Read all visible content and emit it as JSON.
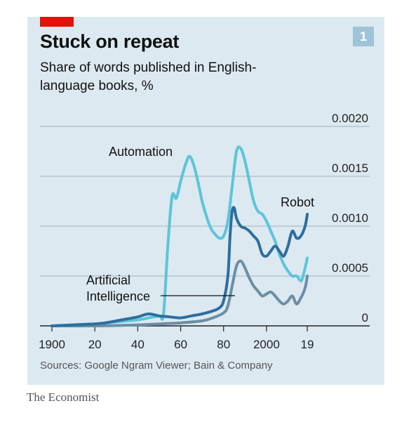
{
  "accent_color": "#e3120b",
  "header": {
    "title": "Stuck on repeat",
    "subtitle": "Share of words published in English-language books, %",
    "chart_number": "1"
  },
  "footer": {
    "source": "Sources: Google Ngram Viewer; Bain & Company",
    "brand": "The Economist"
  },
  "chart_data": {
    "type": "line",
    "title": "Stuck on repeat",
    "subtitle": "Share of words published in English-language books, %",
    "xlim": [
      1896,
      2022
    ],
    "ylim": [
      0,
      0.002
    ],
    "x_ticks": [
      1900,
      1920,
      1940,
      1960,
      1980,
      2000,
      2019
    ],
    "x_tick_labels": [
      "1900",
      "20",
      "40",
      "60",
      "80",
      "2000",
      "19"
    ],
    "y_ticks": [
      0,
      0.0005,
      0.001,
      0.0015,
      0.002
    ],
    "y_tick_labels": [
      "0",
      "0.0005",
      "0.0010",
      "0.0015",
      "0.0020"
    ],
    "grid": true,
    "legend": "inline labels",
    "series": [
      {
        "name": "Automation",
        "color": "#5cc5d9",
        "x": [
          1900,
          1910,
          1920,
          1930,
          1940,
          1945,
          1950,
          1952,
          1954,
          1956,
          1958,
          1960,
          1962,
          1964,
          1966,
          1968,
          1970,
          1972,
          1974,
          1976,
          1978,
          1980,
          1982,
          1984,
          1986,
          1988,
          1990,
          1992,
          1994,
          1996,
          1998,
          2000,
          2002,
          2004,
          2006,
          2008,
          2010,
          2012,
          2014,
          2016,
          2017,
          2018,
          2019
        ],
        "y": [
          0,
          1e-05,
          2e-05,
          4e-05,
          6e-05,
          8e-05,
          0.0001,
          0.00012,
          0.0008,
          0.0013,
          0.00128,
          0.00145,
          0.0016,
          0.0017,
          0.00162,
          0.00145,
          0.00125,
          0.0011,
          0.00098,
          0.00092,
          0.00088,
          0.0009,
          0.00105,
          0.0014,
          0.00175,
          0.00178,
          0.00165,
          0.00145,
          0.00125,
          0.00115,
          0.00112,
          0.00105,
          0.00095,
          0.00085,
          0.00072,
          0.00062,
          0.00055,
          0.0005,
          0.0005,
          0.00045,
          0.0005,
          0.00058,
          0.00068
        ]
      },
      {
        "name": "Robot",
        "color": "#2d6e9e",
        "x": [
          1900,
          1910,
          1920,
          1925,
          1930,
          1935,
          1940,
          1945,
          1950,
          1955,
          1960,
          1965,
          1970,
          1975,
          1978,
          1980,
          1982,
          1983,
          1984,
          1985,
          1986,
          1988,
          1990,
          1992,
          1994,
          1996,
          1998,
          2000,
          2002,
          2004,
          2006,
          2008,
          2010,
          2012,
          2014,
          2016,
          2018,
          2019
        ],
        "y": [
          0,
          1e-05,
          2e-05,
          3e-05,
          5e-05,
          7e-05,
          9e-05,
          0.00012,
          0.0001,
          9e-05,
          8e-05,
          0.0001,
          0.00012,
          0.00015,
          0.00018,
          0.00025,
          0.0005,
          0.0009,
          0.00115,
          0.00118,
          0.00108,
          0.001,
          0.00098,
          0.00095,
          0.0009,
          0.00085,
          0.00072,
          0.0007,
          0.00075,
          0.0008,
          0.00075,
          0.0007,
          0.0008,
          0.00095,
          0.00088,
          0.0009,
          0.001,
          0.00112
        ]
      },
      {
        "name": "Artificial Intelligence",
        "color": "#6c8ea3",
        "x": [
          1900,
          1920,
          1940,
          1950,
          1960,
          1970,
          1975,
          1980,
          1982,
          1984,
          1986,
          1988,
          1990,
          1992,
          1994,
          1996,
          1998,
          2000,
          2002,
          2004,
          2006,
          2008,
          2010,
          2012,
          2014,
          2016,
          2018,
          2019
        ],
        "y": [
          0,
          0,
          1e-05,
          2e-05,
          3e-05,
          5e-05,
          8e-05,
          0.00013,
          0.0002,
          0.0004,
          0.0006,
          0.00065,
          0.00058,
          0.00048,
          0.0004,
          0.00035,
          0.0003,
          0.00032,
          0.00034,
          0.0003,
          0.00025,
          0.00022,
          0.00025,
          0.0003,
          0.00022,
          0.00028,
          0.00038,
          0.0005
        ]
      }
    ],
    "annotations": [
      {
        "text": "Automation",
        "lines": [
          "Automation"
        ]
      },
      {
        "text": "Robot",
        "lines": [
          "Robot"
        ]
      },
      {
        "text": "Artificial Intelligence",
        "lines": [
          "Artificial",
          "Intelligence"
        ]
      }
    ]
  }
}
